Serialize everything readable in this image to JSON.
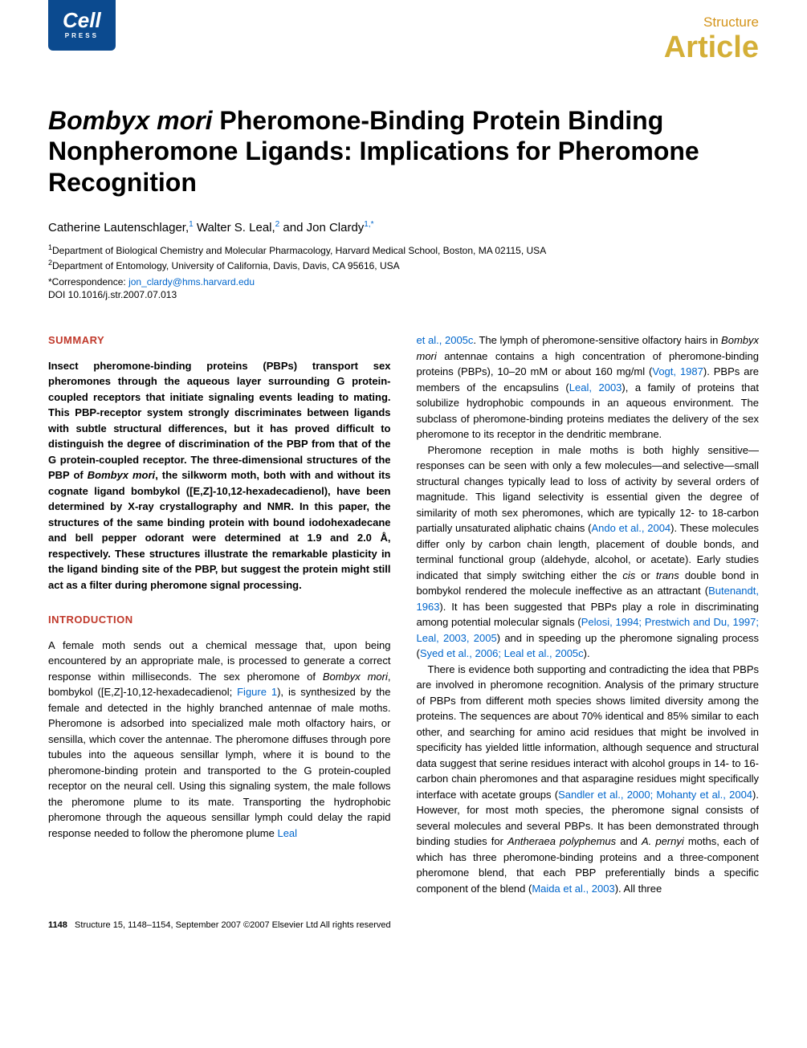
{
  "logo": {
    "main": "Cell",
    "sub": "PRESS"
  },
  "journal": {
    "name": "Structure",
    "type": "Article"
  },
  "title": {
    "species": "Bombyx mori",
    "rest": " Pheromone-Binding Protein Binding Nonpheromone Ligands: Implications for Pheromone Recognition"
  },
  "authors": "Catherine Lautenschlager,",
  "author1_sup": "1",
  "author2": " Walter S. Leal,",
  "author2_sup": "2",
  "author3": " and Jon Clardy",
  "author3_sup": "1,*",
  "affiliations": {
    "a1_sup": "1",
    "a1": "Department of Biological Chemistry and Molecular Pharmacology, Harvard Medical School, Boston, MA 02115, USA",
    "a2_sup": "2",
    "a2": "Department of Entomology, University of California, Davis, Davis, CA 95616, USA"
  },
  "correspondence_label": "*Correspondence: ",
  "correspondence_email": "jon_clardy@hms.harvard.edu",
  "doi": "DOI 10.1016/j.str.2007.07.013",
  "summary_header": "SUMMARY",
  "summary_p1a": "Insect pheromone-binding proteins (PBPs) transport sex pheromones through the aqueous layer surrounding G protein-coupled receptors that initiate signaling events leading to mating. This PBP-receptor system strongly discriminates between ligands with subtle structural differences, but it has proved difficult to distinguish the degree of discrimination of the PBP from that of the G protein-coupled receptor. The three-dimensional structures of the PBP of ",
  "summary_species": "Bombyx mori",
  "summary_p1b": ", the silkworm moth, both with and without its cognate ligand bombykol ([E,Z]-10,12-hexadecadienol), have been determined by X-ray crystallography and NMR. In this paper, the structures of the same binding protein with bound iodohexadecane and bell pepper odorant were determined at 1.9 and 2.0 Å, respectively. These structures illustrate the remarkable plasticity in the ligand binding site of the PBP, but suggest the protein might still act as a filter during pheromone signal processing.",
  "intro_header": "INTRODUCTION",
  "intro_p1a": "A female moth sends out a chemical message that, upon being encountered by an appropriate male, is processed to generate a correct response within milliseconds. The sex pheromone of ",
  "intro_species1": "Bombyx mori",
  "intro_p1b": ", bombykol ([E,Z]-10,12-hexadecadienol; ",
  "intro_ref1": "Figure 1",
  "intro_p1c": "), is synthesized by the female and detected in the highly branched antennae of male moths. Pheromone is adsorbed into specialized male moth olfactory hairs, or sensilla, which cover the antennae. The pheromone diffuses through pore tubules into the aqueous sensillar lymph, where it is bound to the pheromone-binding protein and transported to the G protein-coupled receptor on the neural cell. Using this signaling system, the male follows the pheromone plume to its mate. Transporting the hydrophobic pheromone through the aqueous sensillar lymph could delay the rapid response needed to follow the pheromone plume ",
  "intro_ref2": "Leal",
  "col2_ref1": "et al., 2005c",
  "col2_p1a": ". The lymph of pheromone-sensitive olfactory hairs in ",
  "col2_species1": "Bombyx mori",
  "col2_p1b": " antennae contains a high concentration of pheromone-binding proteins (PBPs), 10–20 mM or about 160 mg/ml (",
  "col2_ref2": "Vogt, 1987",
  "col2_p1c": "). PBPs are members of the encapsulins (",
  "col2_ref3": "Leal, 2003",
  "col2_p1d": "), a family of proteins that solubilize hydrophobic compounds in an aqueous environment. The subclass of pheromone-binding proteins mediates the delivery of the sex pheromone to its receptor in the dendritic membrane.",
  "col2_p2a": "Pheromone reception in male moths is both highly sensitive—responses can be seen with only a few molecules—and selective—small structural changes typically lead to loss of activity by several orders of magnitude. This ligand selectivity is essential given the degree of similarity of moth sex pheromones, which are typically 12- to 18-carbon partially unsaturated aliphatic chains (",
  "col2_ref4": "Ando et al., 2004",
  "col2_p2b": "). These molecules differ only by carbon chain length, placement of double bonds, and terminal functional group (aldehyde, alcohol, or acetate). Early studies indicated that simply switching either the ",
  "col2_cis": "cis",
  "col2_p2c": " or ",
  "col2_trans": "trans",
  "col2_p2d": " double bond in bombykol rendered the molecule ineffective as an attractant (",
  "col2_ref5": "Butenandt, 1963",
  "col2_p2e": "). It has been suggested that PBPs play a role in discriminating among potential molecular signals (",
  "col2_ref6": "Pelosi, 1994; Prestwich and Du, 1997; Leal, 2003, 2005",
  "col2_p2f": ") and in speeding up the pheromone signaling process (",
  "col2_ref7": "Syed et al., 2006; Leal et al., 2005c",
  "col2_p2g": ").",
  "col2_p3a": "There is evidence both supporting and contradicting the idea that PBPs are involved in pheromone recognition. Analysis of the primary structure of PBPs from different moth species shows limited diversity among the proteins. The sequences are about 70% identical and 85% similar to each other, and searching for amino acid residues that might be involved in specificity has yielded little information, although sequence and structural data suggest that serine residues interact with alcohol groups in 14- to 16-carbon chain pheromones and that asparagine residues might specifically interface with acetate groups (",
  "col2_ref8": "Sandler et al., 2000; Mohanty et al., 2004",
  "col2_p3b": "). However, for most moth species, the pheromone signal consists of several molecules and several PBPs. It has been demonstrated through binding studies for ",
  "col2_species2": "Antheraea polyphemus",
  "col2_p3c": " and ",
  "col2_species3": "A. pernyi",
  "col2_p3d": " moths, each of which has three pheromone-binding proteins and a three-component pheromone blend, that each PBP preferentially binds a specific component of the blend (",
  "col2_ref9": "Maida et al., 2003",
  "col2_p3e": "). All three",
  "footer_page": "1148",
  "footer_text": "Structure 15, 1148–1154, September 2007 ©2007 Elsevier Ltd All rights reserved"
}
